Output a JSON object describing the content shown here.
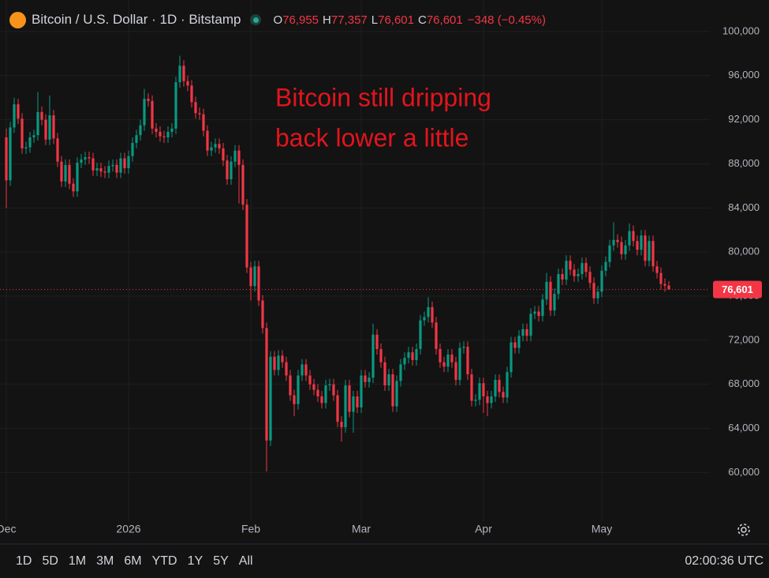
{
  "chart_data": {
    "type": "candlestick",
    "title": "Bitcoin / U.S. Dollar · 1D · Bitstamp",
    "ohlc_readout": [
      {
        "key": "O",
        "value": "76,955"
      },
      {
        "key": "H",
        "value": "77,357"
      },
      {
        "key": "L",
        "value": "76,601"
      },
      {
        "key": "C",
        "value": "76,601"
      }
    ],
    "change": "−348 (−0.45%)",
    "annotation": [
      "Bitcoin still dripping",
      "back lower a little"
    ],
    "up_color": "#089981",
    "down_color": "#f23645",
    "annotation_color": "#e3141c",
    "last_price": {
      "value": 76601,
      "label": "76,601"
    },
    "grid": true,
    "xlim": [
      -1.6,
      178.4
    ],
    "xticks": [
      {
        "value": 0,
        "label": "Dec"
      },
      {
        "value": 31,
        "label": "2026"
      },
      {
        "value": 62,
        "label": "Feb"
      },
      {
        "value": 90,
        "label": "Mar"
      },
      {
        "value": 121,
        "label": "Apr"
      },
      {
        "value": 151,
        "label": "May"
      }
    ],
    "ylim": [
      56300,
      101000
    ],
    "yticks": [
      {
        "value": 60000,
        "label": "60,000"
      },
      {
        "value": 64000,
        "label": "64,000"
      },
      {
        "value": 68000,
        "label": "68,000"
      },
      {
        "value": 72000,
        "label": "72,000"
      },
      {
        "value": 76000,
        "label": "76,000"
      },
      {
        "value": 80000,
        "label": "80,000"
      },
      {
        "value": 84000,
        "label": "84,000"
      },
      {
        "value": 88000,
        "label": "88,000"
      },
      {
        "value": 92000,
        "label": "92,000"
      },
      {
        "value": 96000,
        "label": "96,000"
      },
      {
        "value": 100000,
        "label": "100,000"
      }
    ],
    "open": [
      90400,
      86500,
      91300,
      93400,
      92100,
      89400,
      89500,
      90400,
      90600,
      92700,
      92000,
      90200,
      92400,
      90300,
      88200,
      86400,
      87900,
      86200,
      85500,
      88100,
      88400,
      88600,
      88500,
      87400,
      87600,
      87300,
      87200,
      87800,
      87900,
      87200,
      88500,
      87600,
      88700,
      89900,
      90600,
      91500,
      93900,
      93700,
      91200,
      90900,
      90500,
      90400,
      90900,
      91200,
      95400,
      96900,
      95500,
      95100,
      93600,
      92600,
      92500,
      91000,
      89200,
      89500,
      89800,
      89400,
      88300,
      86600,
      88200,
      89200,
      87900,
      84300,
      78600,
      76900,
      78700,
      75600,
      73100,
      62900,
      70500,
      69300,
      70600,
      70000,
      68800,
      67000,
      66200,
      68800,
      69800,
      68800,
      68000,
      67500,
      66900,
      66300,
      67900,
      68000,
      67000,
      64600,
      64100,
      67900,
      65500,
      66900,
      65900,
      68800,
      68200,
      68600,
      72500,
      71200,
      70000,
      67900,
      68900,
      66000,
      68300,
      69800,
      70400,
      70900,
      70200,
      71200,
      73800,
      74100,
      75000,
      73600,
      71200,
      70000,
      69600,
      70700,
      70000,
      68400,
      71300,
      71400,
      68900,
      66500,
      66600,
      68100,
      66900,
      66300,
      66900,
      68400,
      67300,
      66800,
      69100,
      71800,
      71300,
      72400,
      73000,
      72400,
      74400,
      74600,
      74200,
      75700,
      77300,
      74700,
      76200,
      78000,
      77500,
      79200,
      78400,
      77800,
      78000,
      79000,
      78200,
      77200,
      75800,
      76400,
      78300,
      79100,
      80600,
      81100,
      80900,
      79800,
      80600,
      81900,
      81000,
      80200,
      81500,
      79200,
      81000,
      78700,
      78100,
      77100,
      76955
    ],
    "high": [
      91200,
      91800,
      94000,
      93900,
      92600,
      90000,
      90900,
      91100,
      94500,
      93200,
      92500,
      94200,
      92900,
      90800,
      88700,
      88400,
      88400,
      86700,
      88600,
      88900,
      89100,
      89100,
      89000,
      88100,
      88100,
      87800,
      88300,
      88400,
      88400,
      89000,
      89000,
      89200,
      90400,
      91100,
      92000,
      94800,
      94400,
      94200,
      91700,
      91400,
      91000,
      91400,
      91700,
      95900,
      97800,
      97400,
      96000,
      95600,
      94100,
      93100,
      93000,
      91500,
      90000,
      90300,
      90300,
      89900,
      88800,
      88700,
      89700,
      89700,
      88400,
      84800,
      79100,
      79200,
      79200,
      76100,
      73600,
      71000,
      71000,
      71100,
      71100,
      70500,
      69300,
      67500,
      69300,
      70300,
      70300,
      69300,
      68500,
      68000,
      67400,
      68400,
      68500,
      68500,
      67500,
      65100,
      68400,
      68400,
      67400,
      67400,
      69300,
      69300,
      69100,
      73500,
      73000,
      71700,
      70500,
      69400,
      69400,
      68800,
      70300,
      70900,
      71400,
      71400,
      71700,
      74300,
      74600,
      75900,
      75500,
      74100,
      71700,
      70500,
      71200,
      71200,
      70500,
      71800,
      71900,
      71900,
      69400,
      67100,
      68600,
      68600,
      67400,
      67400,
      68900,
      68900,
      67800,
      69600,
      72300,
      72300,
      72900,
      73500,
      73500,
      74900,
      75100,
      75100,
      76200,
      78100,
      77800,
      76700,
      78500,
      78500,
      79700,
      79700,
      78900,
      78500,
      79500,
      79500,
      78700,
      77700,
      76900,
      78800,
      79600,
      81100,
      82700,
      81600,
      81400,
      81100,
      82600,
      82400,
      81500,
      82000,
      82000,
      81500,
      81500,
      79200,
      78600,
      77600,
      77357
    ],
    "low": [
      84000,
      86000,
      90800,
      91600,
      88900,
      88900,
      89000,
      89900,
      90100,
      91500,
      89700,
      89700,
      89800,
      87700,
      85900,
      85900,
      85700,
      85000,
      85000,
      87600,
      87900,
      88000,
      86900,
      86900,
      86800,
      86700,
      86700,
      87300,
      86700,
      86700,
      87100,
      87100,
      88200,
      89400,
      90100,
      91000,
      93200,
      90700,
      90400,
      90000,
      89900,
      89900,
      90400,
      90700,
      94900,
      95000,
      94600,
      93100,
      92100,
      92000,
      90500,
      88700,
      88700,
      89000,
      88900,
      87800,
      86100,
      86100,
      87700,
      84400,
      83800,
      78100,
      75600,
      76400,
      75100,
      72600,
      60100,
      62400,
      68800,
      68800,
      69500,
      68300,
      66500,
      65100,
      65700,
      68300,
      68300,
      67500,
      67000,
      66400,
      65800,
      65800,
      67400,
      66500,
      64100,
      62800,
      63600,
      65000,
      63600,
      65400,
      65400,
      67700,
      67700,
      68100,
      70700,
      69500,
      67400,
      67400,
      65500,
      65500,
      67800,
      69300,
      69900,
      69700,
      69700,
      70700,
      73300,
      73600,
      73100,
      70700,
      69500,
      69100,
      69100,
      69500,
      67900,
      67900,
      70800,
      68400,
      66000,
      66000,
      66100,
      65400,
      65100,
      65800,
      66400,
      66800,
      66300,
      66300,
      68600,
      70800,
      70800,
      71900,
      71900,
      71900,
      73900,
      73700,
      73700,
      75200,
      74200,
      74200,
      75700,
      77000,
      77000,
      77900,
      77300,
      77300,
      77500,
      77700,
      76700,
      75300,
      75300,
      75900,
      77800,
      78600,
      80100,
      80400,
      79300,
      79300,
      80100,
      80500,
      79700,
      79700,
      78700,
      78700,
      78200,
      77600,
      76600,
      76400,
      76601
    ],
    "close": [
      86500,
      91300,
      93400,
      92100,
      89400,
      89500,
      90400,
      90600,
      92700,
      92000,
      90200,
      92400,
      90300,
      88200,
      86400,
      87900,
      86200,
      85500,
      88100,
      88400,
      88600,
      88500,
      87400,
      87600,
      87300,
      87200,
      87800,
      87900,
      87200,
      88500,
      87600,
      88700,
      89900,
      90600,
      91500,
      93900,
      93700,
      91200,
      90900,
      90500,
      90400,
      90900,
      91200,
      95400,
      96900,
      95500,
      95100,
      93600,
      92600,
      92500,
      91000,
      89200,
      89500,
      89800,
      89400,
      88300,
      86600,
      88200,
      89200,
      87900,
      84300,
      78600,
      76900,
      78700,
      75600,
      73100,
      62900,
      70500,
      69300,
      70600,
      70000,
      68800,
      67000,
      66200,
      68800,
      69800,
      68800,
      68000,
      67500,
      66900,
      66300,
      67900,
      68000,
      67000,
      64600,
      64100,
      67900,
      65500,
      66900,
      65900,
      68800,
      68200,
      68600,
      72500,
      71200,
      70000,
      67900,
      68900,
      66000,
      68300,
      69800,
      70400,
      70900,
      70200,
      71200,
      73800,
      74100,
      75000,
      73600,
      71200,
      70000,
      69600,
      70700,
      70000,
      68400,
      71300,
      71400,
      68900,
      66500,
      66600,
      68100,
      66900,
      66300,
      66900,
      68400,
      67300,
      66800,
      69100,
      71800,
      71300,
      72400,
      73000,
      72400,
      74400,
      74600,
      74200,
      75700,
      77300,
      74700,
      76200,
      78000,
      77500,
      79200,
      78400,
      77800,
      78000,
      79000,
      78200,
      77200,
      75800,
      76400,
      78300,
      79100,
      80600,
      81100,
      80900,
      79800,
      80600,
      81900,
      81000,
      80200,
      81500,
      79200,
      81000,
      78700,
      78100,
      77100,
      76949,
      76601
    ]
  },
  "toolbar": {
    "ranges": [
      "1D",
      "5D",
      "1M",
      "3M",
      "6M",
      "YTD",
      "1Y",
      "5Y",
      "All"
    ],
    "clock": "02:00:36 UTC"
  }
}
